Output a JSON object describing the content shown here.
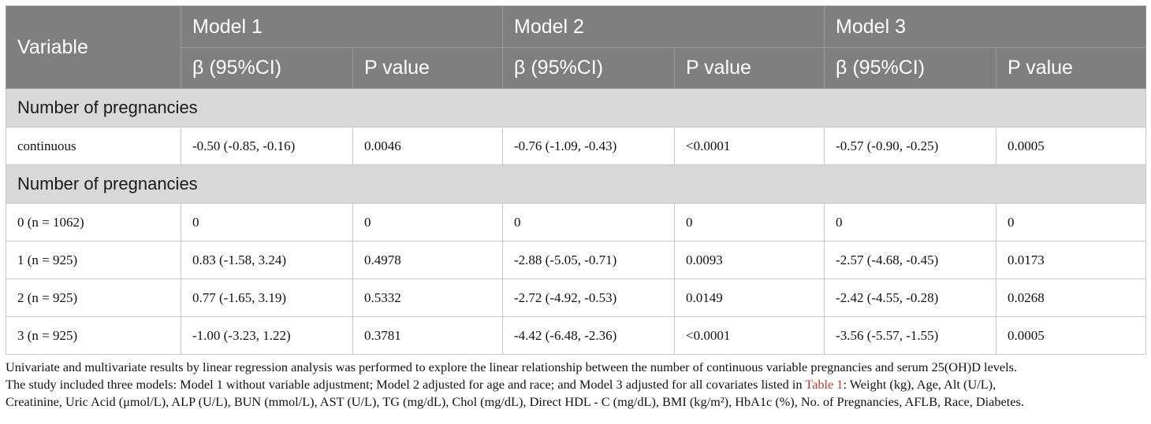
{
  "table": {
    "header": {
      "variable": "Variable",
      "models": [
        "Model 1",
        "Model 2",
        "Model 3"
      ],
      "beta": "β (95%CI)",
      "p": "P value"
    },
    "sections": [
      {
        "title": "Number of pregnancies",
        "rows": [
          {
            "label": "continuous",
            "cells": [
              "-0.50 (-0.85, -0.16)",
              "0.0046",
              "-0.76 (-1.09, -0.43)",
              "<0.0001",
              "-0.57 (-0.90, -0.25)",
              "0.0005"
            ]
          }
        ]
      },
      {
        "title": "Number of pregnancies",
        "rows": [
          {
            "label": "0 (n = 1062)",
            "cells": [
              "0",
              "0",
              "0",
              "0",
              "0",
              "0"
            ]
          },
          {
            "label": "1 (n = 925)",
            "cells": [
              "0.83 (-1.58, 3.24)",
              "0.4978",
              "-2.88 (-5.05, -0.71)",
              "0.0093",
              "-2.57 (-4.68, -0.45)",
              "0.0173"
            ]
          },
          {
            "label": "2 (n = 925)",
            "cells": [
              "0.77 (-1.65, 3.19)",
              "0.5332",
              "-2.72 (-4.92, -0.53)",
              "0.0149",
              "-2.42 (-4.55, -0.28)",
              "0.0268"
            ]
          },
          {
            "label": "3 (n = 925)",
            "cells": [
              "-1.00 (-3.23, 1.22)",
              "0.3781",
              "-4.42 (-6.48, -2.36)",
              "<0.0001",
              "-3.56 (-5.57, -1.55)",
              "0.0005"
            ]
          }
        ]
      }
    ]
  },
  "footnote": {
    "line1": "Univariate and multivariate results by linear regression analysis was performed to explore the linear relationship between the number of continuous variable pregnancies and serum 25(OH)D levels.",
    "line2_before": "The study included three models: Model 1 without variable adjustment; Model 2 adjusted for age and race; and Model 3 adjusted for all covariates listed in ",
    "link": "Table 1",
    "line2_after": ": Weight (kg), Age, Alt (U/L),",
    "line3": "Creatinine, Uric Acid (μmol/L), ALP (U/L), BUN (mmol/L), AST (U/L), TG (mg/dL), Chol (mg/dL), Direct HDL - C (mg/dL), BMI (kg/m²), HbA1c (%), No. of Pregnancies, AFLB, Race, Diabetes."
  }
}
